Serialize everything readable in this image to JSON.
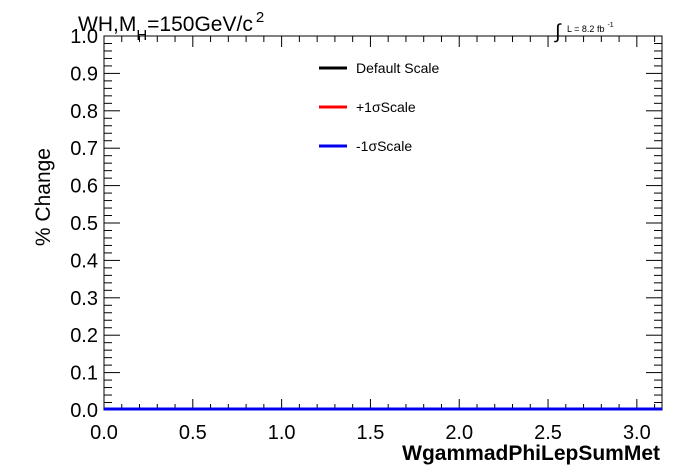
{
  "chart_data": {
    "type": "line",
    "title_parts": {
      "main_a": "WH,M",
      "sub": "H",
      "main_b": "=150GeV/c",
      "sup": "2"
    },
    "lumi_label": {
      "integral": "∫",
      "text": "L = 8.2 fb",
      "sup": "-1"
    },
    "xlabel": "WgammadPhiLepSumMet",
    "ylabel": "% Change",
    "xlim": [
      0.0,
      3.1416
    ],
    "ylim": [
      0.0,
      1.0
    ],
    "x_ticks": [
      0.0,
      0.5,
      1.0,
      1.5,
      2.0,
      2.5,
      3.0
    ],
    "x_tick_labels": [
      "0.0",
      "0.5",
      "1.0",
      "1.5",
      "2.0",
      "2.5",
      "3.0"
    ],
    "y_ticks": [
      0.0,
      0.1,
      0.2,
      0.3,
      0.4,
      0.5,
      0.6,
      0.7,
      0.8,
      0.9,
      1.0
    ],
    "y_tick_labels": [
      "0.0",
      "0.1",
      "0.2",
      "0.3",
      "0.4",
      "0.5",
      "0.6",
      "0.7",
      "0.8",
      "0.9",
      "1.0"
    ],
    "grid": false,
    "legend_position": "top-center",
    "series": [
      {
        "name": "Default Scale",
        "color": "#000000",
        "x": [
          0.0,
          3.1416
        ],
        "y": [
          0.0,
          0.0
        ]
      },
      {
        "name": "+1σScale",
        "color": "#ff0000",
        "x": [
          0.0,
          3.1416
        ],
        "y": [
          0.0,
          0.0
        ]
      },
      {
        "name": "-1σScale",
        "color": "#0000ee",
        "x": [
          0.0,
          3.1416
        ],
        "y": [
          0.0,
          0.0
        ]
      }
    ]
  }
}
